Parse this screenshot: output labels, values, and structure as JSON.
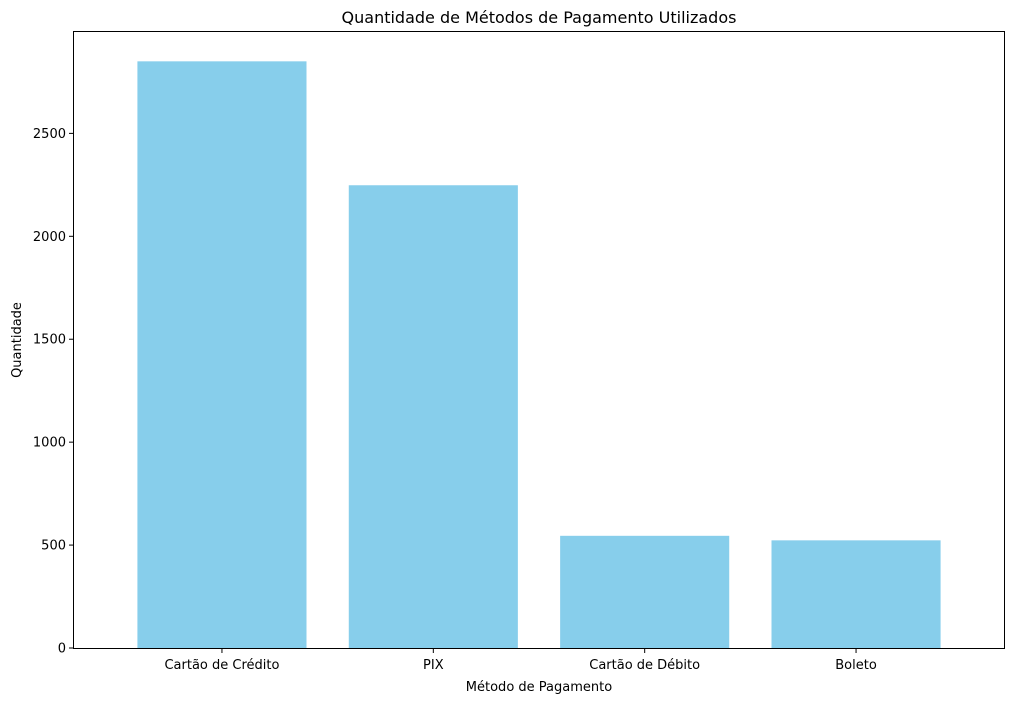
{
  "chart_data": {
    "type": "bar",
    "title": "Quantidade de Métodos de Pagamento Utilizados",
    "xlabel": "Método de Pagamento",
    "ylabel": "Quantidade",
    "categories": [
      "Cartão de Crédito",
      "PIX",
      "Cartão de Débito",
      "Boleto"
    ],
    "values": [
      2850,
      2248,
      545,
      523
    ],
    "ylim": [
      0,
      2992.5
    ],
    "yticks": [
      0,
      500,
      1000,
      1500,
      2000,
      2500
    ],
    "bar_color": "#87ceeb",
    "grid": false,
    "legend": "none"
  }
}
